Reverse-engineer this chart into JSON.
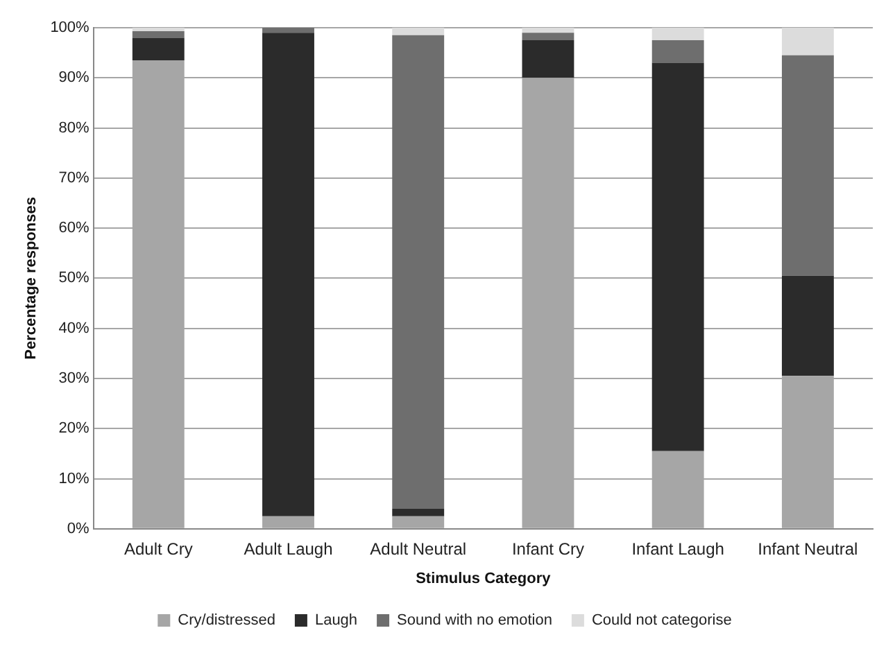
{
  "chart_data": {
    "type": "bar",
    "stacked": true,
    "xlabel": "Stimulus Category",
    "ylabel": "Percentage responses",
    "categories": [
      "Adult Cry",
      "Adult Laugh",
      "Adult Neutral",
      "Infant Cry",
      "Infant Laugh",
      "Infant Neutral"
    ],
    "series": [
      {
        "name": "Cry/distressed",
        "color": "#a6a6a6",
        "values": [
          93.5,
          2.5,
          2.5,
          90,
          15.5,
          30.5
        ]
      },
      {
        "name": "Laugh",
        "color": "#2b2b2b",
        "values": [
          4.5,
          96.5,
          1.5,
          7.5,
          77.5,
          20
        ]
      },
      {
        "name": "Sound with no emotion",
        "color": "#6e6e6e",
        "values": [
          1.3,
          1,
          94.5,
          1.5,
          4.5,
          44
        ]
      },
      {
        "name": "Could not categorise",
        "color": "#dcdcdc",
        "values": [
          0.7,
          0,
          1.5,
          1,
          2.5,
          5.5
        ]
      }
    ],
    "ylim": [
      0,
      100
    ],
    "yticks": [
      {
        "value": 0,
        "label": "0%"
      },
      {
        "value": 10,
        "label": "10%"
      },
      {
        "value": 20,
        "label": "20%"
      },
      {
        "value": 30,
        "label": "30%"
      },
      {
        "value": 40,
        "label": "40%"
      },
      {
        "value": 50,
        "label": "50%"
      },
      {
        "value": 60,
        "label": "60%"
      },
      {
        "value": 70,
        "label": "70%"
      },
      {
        "value": 80,
        "label": "80%"
      },
      {
        "value": 90,
        "label": "90%"
      },
      {
        "value": 100,
        "label": "100%"
      }
    ],
    "grid": "y",
    "legend": "bottom"
  }
}
